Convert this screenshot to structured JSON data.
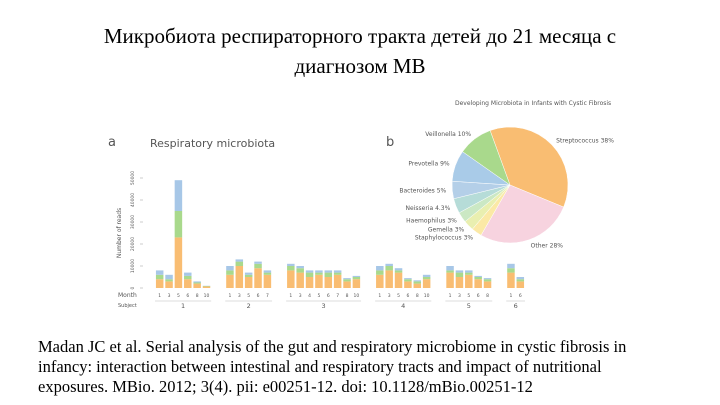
{
  "slide": {
    "title": [
      "Микробиота респираторного тракта детей до 21 месяца с",
      "диагнозом  МВ"
    ],
    "caption": [
      "Madan JC et al. Serial analysis of the gut and respiratory microbiome in cystic fibrosis in",
      "infancy: interaction between intestinal and respiratory tracts and impact of nutritional",
      "exposures. MBio. 2012; 3(4). pii: e00251-12. doi: 10.1128/mBio.00251-12"
    ]
  },
  "figure": {
    "panel_a": {
      "letter": "a",
      "chart_data": {
        "type": "stacked-bar",
        "title": "Respiratory microbiota",
        "ylabel": "Number of reads",
        "ylim": [
          0,
          50000
        ],
        "yticks": [
          0,
          10000,
          20000,
          30000,
          40000,
          50000
        ],
        "month_label": "Month",
        "subject_label": "Subject",
        "colors": [
          "#f9bd72",
          "#a9d98c",
          "#a7c7e7"
        ],
        "groups": [
          {
            "label": "1",
            "categories": [
              "1",
              "3",
              "5",
              "6",
              "8",
              "10"
            ],
            "values": [
              [
                4000,
                2000,
                2000
              ],
              [
                3000,
                1000,
                2000
              ],
              [
                23000,
                12000,
                14000
              ],
              [
                4000,
                1500,
                1500
              ],
              [
                2000,
                500,
                500
              ],
              [
                700,
                200,
                100
              ]
            ]
          },
          {
            "label": "2",
            "categories": [
              "1",
              "3",
              "5",
              "6",
              "7"
            ],
            "values": [
              [
                6000,
                2000,
                2000
              ],
              [
                10000,
                2000,
                1000
              ],
              [
                5000,
                1000,
                1000
              ],
              [
                9000,
                2000,
                1000
              ],
              [
                6000,
                1000,
                1000
              ]
            ]
          },
          {
            "label": "3",
            "categories": [
              "1",
              "3",
              "4",
              "5",
              "6",
              "7",
              "8",
              "10"
            ],
            "values": [
              [
                8000,
                2000,
                1000
              ],
              [
                7000,
                2000,
                1000
              ],
              [
                5000,
                2000,
                1000
              ],
              [
                6000,
                1000,
                1000
              ],
              [
                5000,
                2000,
                1000
              ],
              [
                6000,
                1000,
                1000
              ],
              [
                3000,
                1000,
                500
              ],
              [
                4000,
                1000,
                500
              ]
            ]
          },
          {
            "label": "4",
            "categories": [
              "1",
              "3",
              "5",
              "6",
              "8",
              "10"
            ],
            "values": [
              [
                6000,
                2000,
                2000
              ],
              [
                8000,
                2000,
                1000
              ],
              [
                7000,
                1000,
                1000
              ],
              [
                3000,
                1000,
                500
              ],
              [
                2000,
                1000,
                500
              ],
              [
                4000,
                1000,
                1000
              ]
            ]
          },
          {
            "label": "5",
            "categories": [
              "1",
              "3",
              "5",
              "6",
              "8"
            ],
            "values": [
              [
                7000,
                1000,
                2000
              ],
              [
                5000,
                2000,
                1000
              ],
              [
                6000,
                1000,
                1000
              ],
              [
                4000,
                1000,
                500
              ],
              [
                3000,
                1000,
                500
              ]
            ]
          },
          {
            "label": "6",
            "categories": [
              "1",
              "6"
            ],
            "values": [
              [
                7000,
                2000,
                2000
              ],
              [
                3000,
                1000,
                1000
              ]
            ]
          }
        ]
      }
    },
    "panel_b": {
      "letter": "b",
      "chart_data": {
        "type": "pie",
        "title": "Developing Microbiota in Infants with Cystic Fibrosis",
        "categories": [
          "Streptococcus",
          "Other",
          "Staphylococcus",
          "Gemella",
          "Haemophilus",
          "Neisseria",
          "Bacteroides",
          "Prevotella",
          "Veillonella"
        ],
        "values": [
          38,
          28,
          3,
          3,
          3,
          4.3,
          5,
          9,
          10
        ],
        "value_labels": [
          "38%",
          "28%",
          "3%",
          "3%",
          "3%",
          "4.3%",
          "5%",
          "9%",
          "10%"
        ],
        "colors": [
          "#f9bd72",
          "#f7d3df",
          "#fbe9a6",
          "#e9efb0",
          "#cbe8c4",
          "#b6dcd8",
          "#b4cfe8",
          "#a9cbe8",
          "#a9d98c"
        ]
      }
    }
  }
}
